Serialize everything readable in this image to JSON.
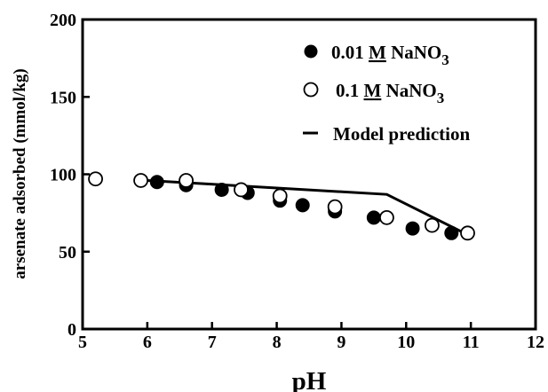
{
  "chart_data": {
    "type": "scatter",
    "xlabel": "pH",
    "ylabel": "arsenate adsorbed (mmol/kg)",
    "xlim": [
      5,
      12
    ],
    "ylim": [
      0,
      200
    ],
    "xticks": [
      "5",
      "6",
      "7",
      "8",
      "9",
      "10",
      "11",
      "12"
    ],
    "yticks": [
      "0",
      "50",
      "100",
      "150",
      "200"
    ],
    "grid": false,
    "legend_position": "top-right",
    "series": [
      {
        "name_parts": [
          "0.01 ",
          "M",
          " NaNO",
          "3"
        ],
        "marker": "filled-circle",
        "points": [
          [
            6.15,
            95
          ],
          [
            6.6,
            94
          ],
          [
            6.6,
            93
          ],
          [
            7.15,
            90
          ],
          [
            7.55,
            88
          ],
          [
            8.05,
            85
          ],
          [
            8.05,
            83
          ],
          [
            8.4,
            80
          ],
          [
            8.9,
            78
          ],
          [
            8.9,
            76
          ],
          [
            9.5,
            72
          ],
          [
            10.1,
            65
          ],
          [
            10.7,
            62
          ]
        ]
      },
      {
        "name_parts": [
          "0.1 ",
          "M",
          " NaNO",
          "3"
        ],
        "marker": "open-circle",
        "points": [
          [
            5.2,
            97
          ],
          [
            5.9,
            96
          ],
          [
            6.6,
            96
          ],
          [
            7.45,
            90
          ],
          [
            8.05,
            86
          ],
          [
            8.9,
            79
          ],
          [
            9.7,
            72
          ],
          [
            10.4,
            67
          ],
          [
            10.95,
            62
          ]
        ]
      },
      {
        "name": "Model prediction",
        "marker": "line",
        "points": [
          [
            6.0,
            96
          ],
          [
            9.7,
            87
          ],
          [
            10.9,
            62
          ]
        ]
      }
    ]
  }
}
